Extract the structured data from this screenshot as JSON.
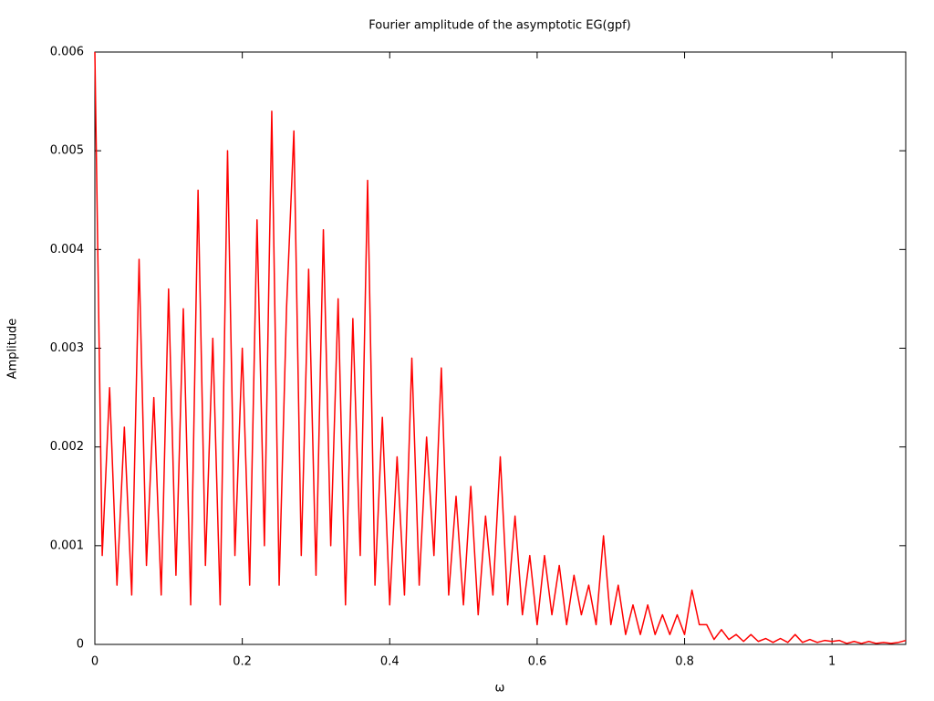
{
  "chart_data": {
    "type": "line",
    "title": "Fourier amplitude of the asymptotic EG(gpf)",
    "x_label": "ω",
    "y_label": "Amplitude",
    "xlim": [
      0,
      1.1
    ],
    "xticks": [
      0,
      0.2,
      0.4,
      0.6,
      0.8,
      1
    ],
    "ylim": [
      0,
      0.006
    ],
    "yticks": [
      0,
      0.001,
      0.002,
      0.003,
      0.004,
      0.005,
      0.006
    ],
    "x": [
      0,
      0.01,
      0.02,
      0.03,
      0.04,
      0.05,
      0.06,
      0.07,
      0.08,
      0.09,
      0.1,
      0.11,
      0.12,
      0.13,
      0.14,
      0.15,
      0.16,
      0.17,
      0.18,
      0.19,
      0.2,
      0.21,
      0.22,
      0.23,
      0.24,
      0.25,
      0.26,
      0.27,
      0.28,
      0.29,
      0.3,
      0.31,
      0.32,
      0.33,
      0.34,
      0.35,
      0.36,
      0.37,
      0.38,
      0.39,
      0.4,
      0.41,
      0.42,
      0.43,
      0.44,
      0.45,
      0.46,
      0.47,
      0.48,
      0.49,
      0.5,
      0.51,
      0.52,
      0.53,
      0.54,
      0.55,
      0.56,
      0.57,
      0.58,
      0.59,
      0.6,
      0.61,
      0.62,
      0.63,
      0.64,
      0.65,
      0.66,
      0.67,
      0.68,
      0.69,
      0.7,
      0.71,
      0.72,
      0.73,
      0.74,
      0.75,
      0.76,
      0.77,
      0.78,
      0.79,
      0.8,
      0.81,
      0.82,
      0.83,
      0.84,
      0.85,
      0.86,
      0.87,
      0.88,
      0.89,
      0.9,
      0.91,
      0.92,
      0.93,
      0.94,
      0.95,
      0.96,
      0.97,
      0.98,
      0.99,
      1,
      1.01,
      1.02,
      1.03,
      1.04,
      1.05,
      1.06,
      1.07,
      1.08,
      1.09,
      1.1
    ],
    "series": [
      {
        "color": "#ff0000",
        "values": [
          0.006,
          0.0009,
          0.0026,
          0.0006,
          0.0022,
          0.0005,
          0.0039,
          0.0008,
          0.0025,
          0.0005,
          0.0036,
          0.0007,
          0.0034,
          0.0004,
          0.0046,
          0.0008,
          0.0031,
          0.0004,
          0.005,
          0.0009,
          0.003,
          0.0006,
          0.0043,
          0.001,
          0.0054,
          0.0006,
          0.0034,
          0.0052,
          0.0009,
          0.0038,
          0.0007,
          0.0042,
          0.001,
          0.0035,
          0.0004,
          0.0033,
          0.0009,
          0.0047,
          0.0006,
          0.0023,
          0.0004,
          0.0019,
          0.0005,
          0.0029,
          0.0006,
          0.0021,
          0.0009,
          0.0028,
          0.0005,
          0.0015,
          0.0004,
          0.0016,
          0.0003,
          0.0013,
          0.0005,
          0.0019,
          0.0004,
          0.0013,
          0.0003,
          0.0009,
          0.0002,
          0.0009,
          0.0003,
          0.0008,
          0.0002,
          0.0007,
          0.0003,
          0.0006,
          0.0002,
          0.0011,
          0.0002,
          0.0006,
          0.0001,
          0.0004,
          0.0001,
          0.0004,
          0.0001,
          0.0003,
          0.0001,
          0.0003,
          0.0001,
          0.00055,
          0.0002,
          0.0002,
          5e-05,
          0.00015,
          5e-05,
          0.0001,
          3e-05,
          0.0001,
          3e-05,
          6e-05,
          2e-05,
          6e-05,
          2e-05,
          0.0001,
          2e-05,
          5e-05,
          2e-05,
          4e-05,
          3e-05,
          4e-05,
          1e-05,
          3e-05,
          1e-05,
          3e-05,
          1e-05,
          2e-05,
          1e-05,
          2e-05,
          4e-05
        ]
      }
    ]
  }
}
